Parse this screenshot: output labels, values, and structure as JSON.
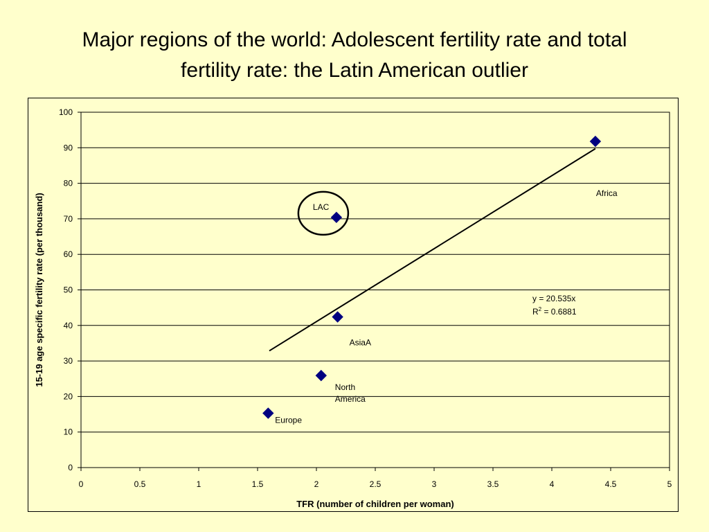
{
  "title_lines": [
    "Major regions of the world: Adolescent fertility rate and total",
    "fertility rate: the Latin American outlier"
  ],
  "chart_data": {
    "type": "scatter",
    "xlabel": "TFR (number of children per woman)",
    "ylabel": "15-19 age specific fertility rate (per thousand)",
    "xlim": [
      0,
      5
    ],
    "ylim": [
      0,
      100
    ],
    "x_ticks": [
      "0",
      "0.5",
      "1",
      "1.5",
      "2",
      "2.5",
      "3",
      "3.5",
      "4",
      "4.5",
      "5"
    ],
    "y_ticks": [
      "0",
      "10",
      "20",
      "30",
      "40",
      "50",
      "60",
      "70",
      "80",
      "90",
      "100"
    ],
    "grid": "horizontal",
    "points": [
      {
        "label": "Europe",
        "x": 1.59,
        "y": 15.3
      },
      {
        "label": "North America",
        "x": 2.04,
        "y": 25.9
      },
      {
        "label": "AsiaA",
        "x": 2.18,
        "y": 42.4
      },
      {
        "label": "LAC",
        "x": 2.17,
        "y": 70.4
      },
      {
        "label": "Africa",
        "x": 4.37,
        "y": 91.8
      }
    ],
    "marker_color": "#000080",
    "trendline": {
      "slope": 20.535,
      "x_range": [
        1.6,
        4.37
      ],
      "equation": "y = 20.535x",
      "r2_prefix": "R",
      "r2_sup": "2",
      "r2_value": " = 0.6881"
    },
    "annotation": "LAC circled as outlier"
  }
}
